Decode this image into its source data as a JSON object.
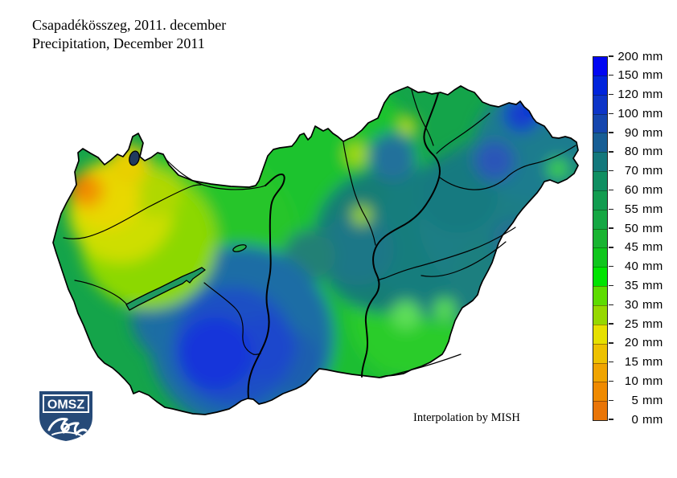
{
  "title": {
    "hu": "Csapadékösszeg, 2011. december",
    "en": "Precipitation, December 2011"
  },
  "credit": "Interpolation by MISH",
  "logo": {
    "text": "OMSZ",
    "shield_color": "#264a78"
  },
  "legend": {
    "unit": "mm",
    "levels_top_to_bottom": [
      200,
      150,
      120,
      100,
      90,
      80,
      70,
      60,
      55,
      50,
      45,
      40,
      35,
      30,
      25,
      20,
      15,
      10,
      5,
      0
    ],
    "band_colors_top_to_bottom": [
      "#0006f2",
      "#0024dc",
      "#0d35c8",
      "#1546ae",
      "#175e95",
      "#13787c",
      "#0f8f62",
      "#129c50",
      "#15a743",
      "#19b431",
      "#0fc61c",
      "#00e400",
      "#5ddc00",
      "#96d800",
      "#e6e000",
      "#edc100",
      "#f0a400",
      "#ef8a00",
      "#e97507"
    ]
  },
  "map_data": {
    "type": "filled-contour precipitation map",
    "region": "Hungary",
    "variable": "Monthly precipitation sum",
    "period": "December 2011",
    "unit": "mm",
    "value_range_mm": [
      0,
      200
    ],
    "depicted_pattern": [
      {
        "area": "northwest corner (Sopron area)",
        "approx_value_mm": "10-25"
      },
      {
        "area": "west and north-center",
        "approx_value_mm": "30-45"
      },
      {
        "area": "central band / Tisza valley",
        "approx_value_mm": "60-80"
      },
      {
        "area": "southwest (Somogy-Baranya core)",
        "approx_value_mm": "100-150"
      },
      {
        "area": "northeast border streak (Zemplen)",
        "approx_value_mm": "100-120"
      },
      {
        "area": "southeast plain (Koros region)",
        "approx_value_mm": "40-50"
      },
      {
        "area": "northeast tip bright spot",
        "approx_value_mm": "50-55"
      }
    ]
  }
}
